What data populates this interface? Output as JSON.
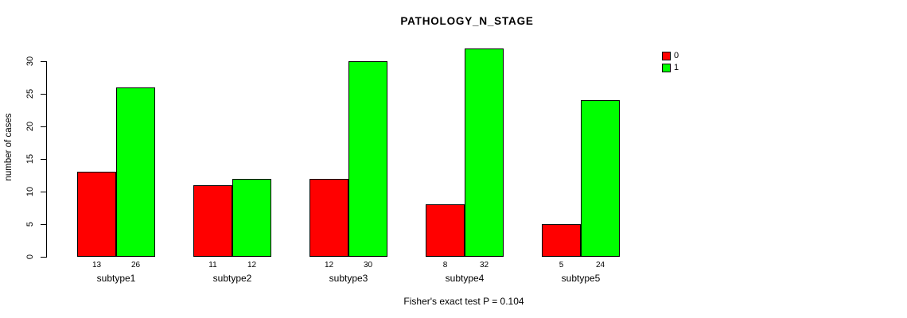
{
  "chart_data": {
    "type": "bar",
    "title": "PATHOLOGY_N_STAGE",
    "xlabel": "",
    "ylabel": "number of cases",
    "categories": [
      "subtype1",
      "subtype2",
      "subtype3",
      "subtype4",
      "subtype5"
    ],
    "series": [
      {
        "name": "0",
        "color": "#ff0000",
        "values": [
          13,
          11,
          12,
          8,
          5
        ]
      },
      {
        "name": "1",
        "color": "#00ff00",
        "values": [
          26,
          12,
          30,
          32,
          24
        ]
      }
    ],
    "bar_value_labels_shown": true,
    "yticks": [
      0,
      5,
      10,
      15,
      20,
      25,
      30
    ],
    "ylim": [
      0,
      32
    ],
    "grid": false,
    "legend_position": "right-top",
    "annotation": "Fisher's exact test P = 0.104"
  }
}
